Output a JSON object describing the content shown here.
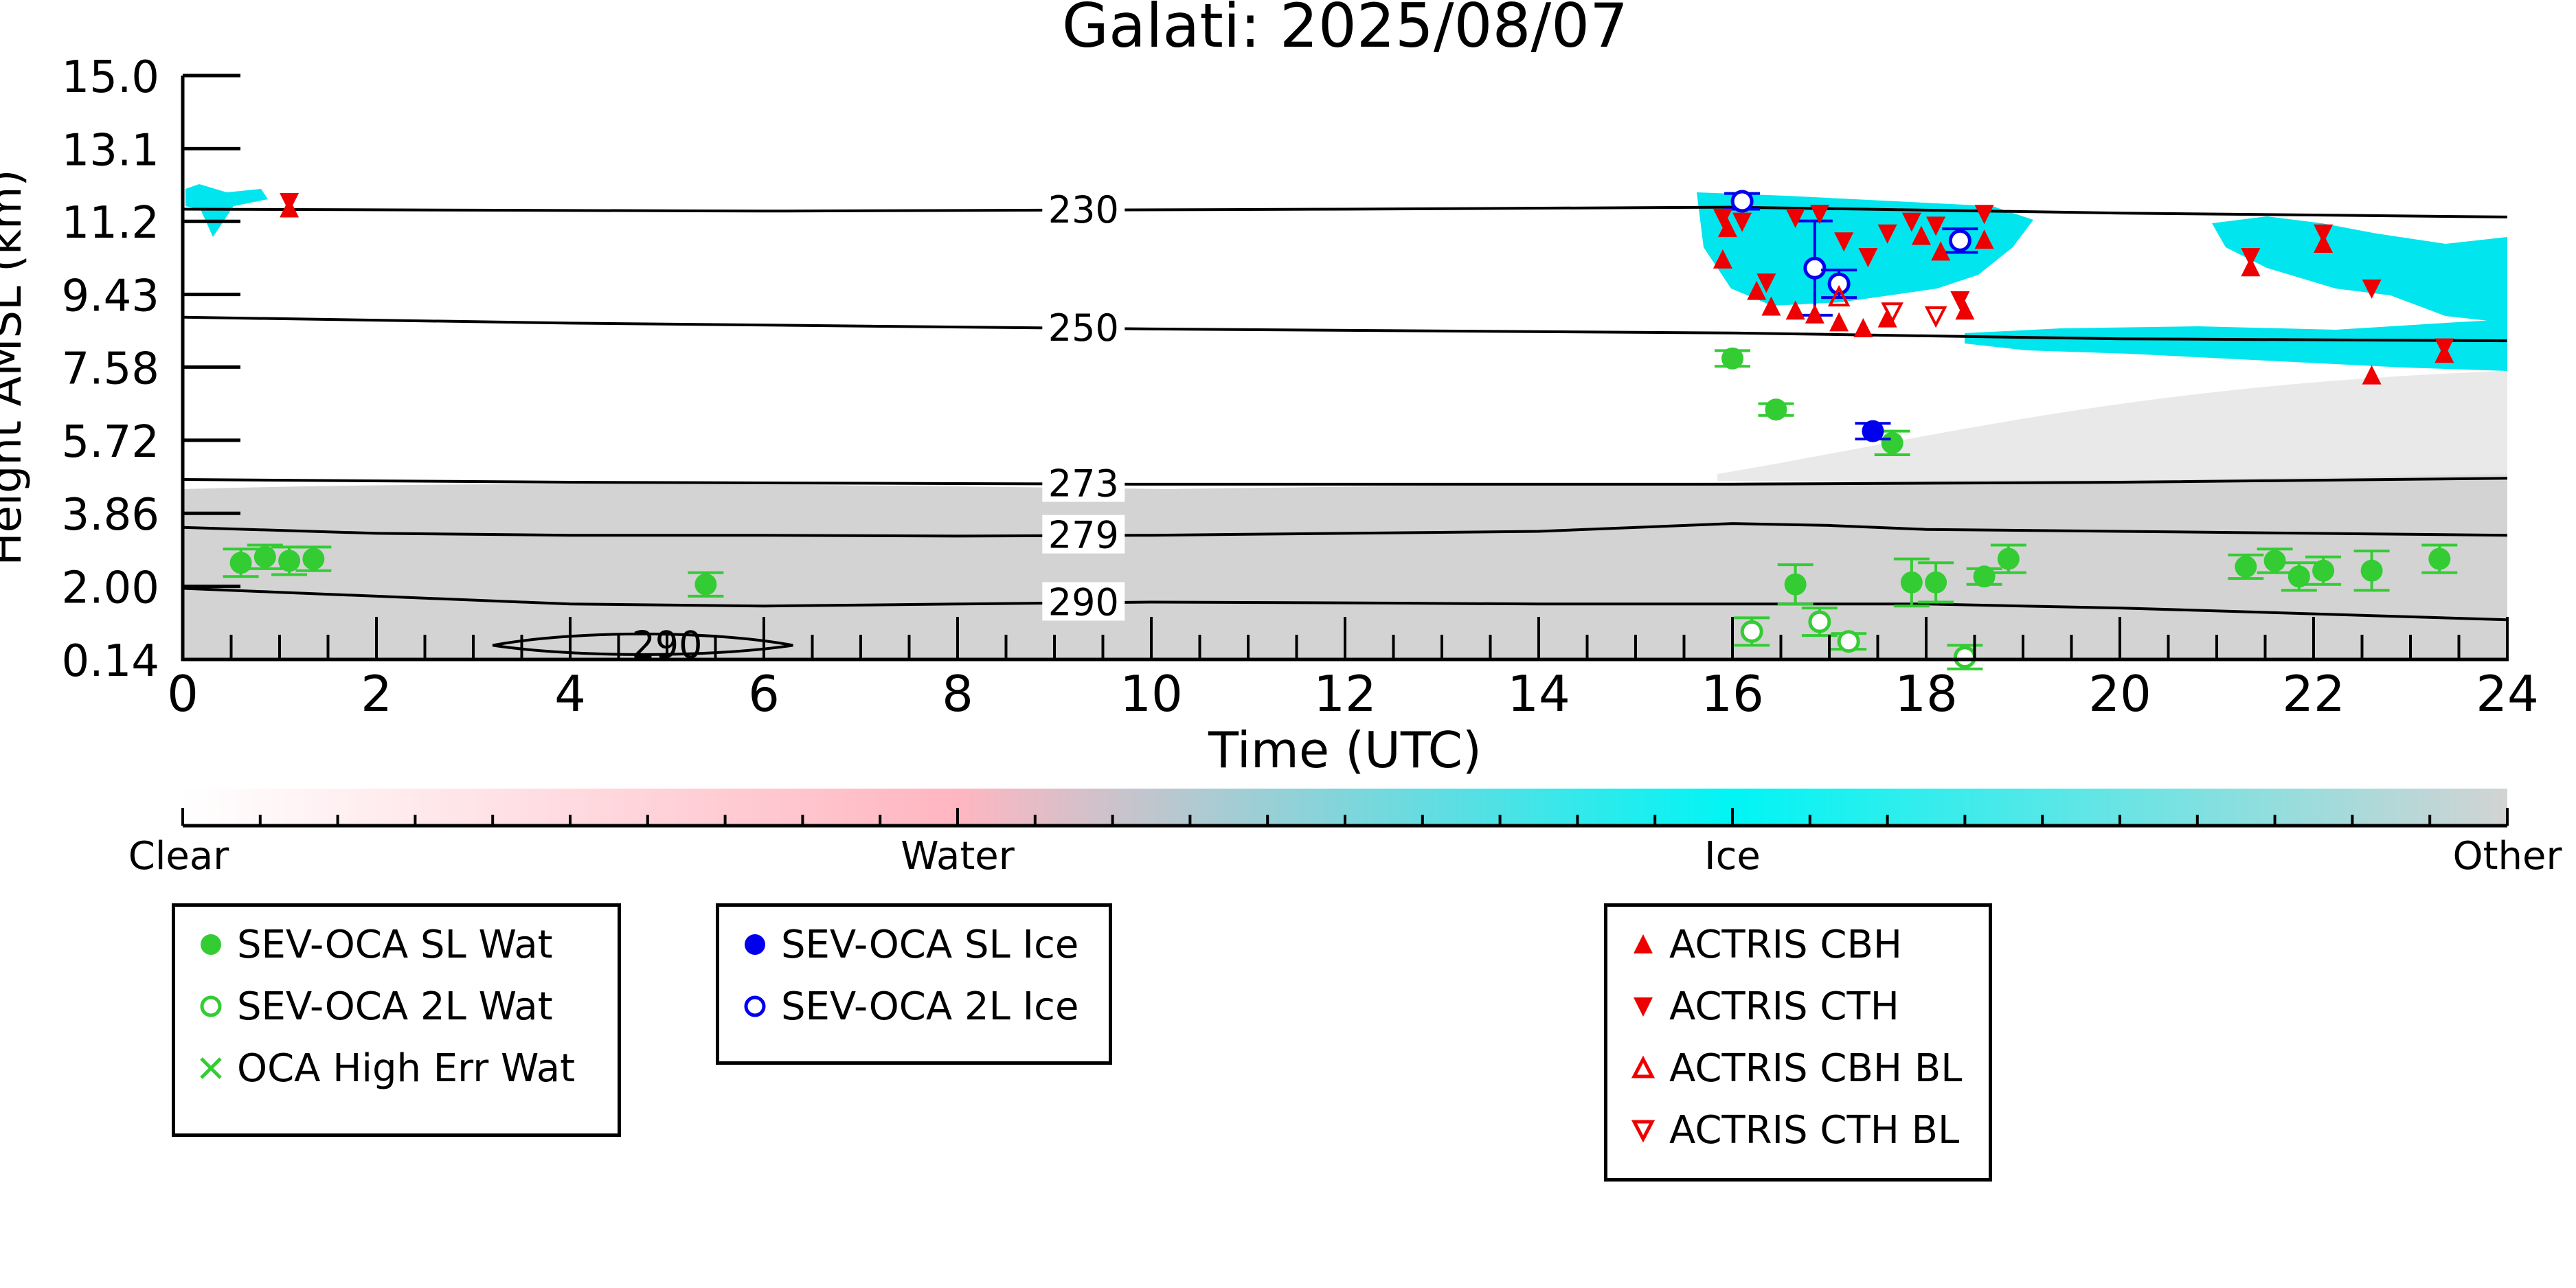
{
  "title": "Galati: 2025/08/07",
  "chart_data": {
    "type": "scatter",
    "title": "Galati: 2025/08/07",
    "xlabel": "Time (UTC)",
    "ylabel": "Height AMSL (km)",
    "xlim": [
      0,
      24
    ],
    "ylim": [
      0.14,
      15.0
    ],
    "xticks": [
      "0",
      "2",
      "4",
      "6",
      "8",
      "10",
      "12",
      "14",
      "16",
      "18",
      "20",
      "22",
      "24"
    ],
    "yticks": [
      "0.14",
      "2.00",
      "3.86",
      "5.72",
      "7.58",
      "9.43",
      "11.2",
      "13.1",
      "15.0"
    ],
    "ytick_values": [
      0.14,
      2.0,
      3.86,
      5.72,
      7.58,
      9.43,
      11.29,
      13.14,
      15.0
    ],
    "colorbar": {
      "labels": [
        "Clear",
        "Water",
        "Ice",
        "Other"
      ],
      "colors": [
        "#ffffff",
        "#ffb6c1",
        "#00ffff",
        "#d3d3d3"
      ]
    },
    "isotherms": [
      {
        "label": "230",
        "x": [
          0,
          6,
          12,
          16,
          20,
          24
        ],
        "y": [
          11.6,
          11.55,
          11.6,
          11.65,
          11.5,
          11.4
        ]
      },
      {
        "label": "250",
        "x": [
          0,
          4,
          10,
          16,
          20,
          24
        ],
        "y": [
          8.85,
          8.7,
          8.55,
          8.45,
          8.3,
          8.25
        ]
      },
      {
        "label": "273",
        "x": [
          0,
          4,
          10,
          16,
          20,
          24
        ],
        "y": [
          4.72,
          4.65,
          4.6,
          4.6,
          4.65,
          4.75
        ]
      },
      {
        "label": "279",
        "x": [
          0,
          2,
          4,
          6,
          8,
          10,
          12,
          14,
          16,
          17,
          18,
          20,
          22,
          24
        ],
        "y": [
          3.5,
          3.35,
          3.3,
          3.3,
          3.28,
          3.3,
          3.35,
          3.4,
          3.6,
          3.55,
          3.45,
          3.4,
          3.35,
          3.3
        ]
      },
      {
        "label": "290",
        "x": [
          0,
          1,
          2,
          4,
          6,
          8,
          10,
          12,
          14,
          16,
          18,
          20,
          22,
          24
        ],
        "y": [
          1.95,
          1.85,
          1.75,
          1.55,
          1.5,
          1.55,
          1.6,
          1.58,
          1.55,
          1.55,
          1.55,
          1.45,
          1.3,
          1.15
        ]
      }
    ],
    "series": [
      {
        "name": "SEV-OCA SL Wat",
        "color": "#33cc33",
        "marker": "filled-circle",
        "points": [
          [
            0.6,
            2.6,
            0.35
          ],
          [
            0.85,
            2.75,
            0.3
          ],
          [
            1.1,
            2.65,
            0.35
          ],
          [
            1.35,
            2.7,
            0.3
          ],
          [
            5.4,
            2.05,
            0.3
          ],
          [
            16.0,
            7.8,
            0.2
          ],
          [
            16.45,
            6.5,
            0.15
          ],
          [
            16.65,
            2.05,
            0.5
          ],
          [
            17.65,
            5.65,
            0.3
          ],
          [
            17.85,
            2.1,
            0.6
          ],
          [
            18.1,
            2.1,
            0.5
          ],
          [
            18.6,
            2.25,
            0.2
          ],
          [
            18.85,
            2.7,
            0.35
          ],
          [
            21.3,
            2.5,
            0.3
          ],
          [
            21.6,
            2.65,
            0.3
          ],
          [
            21.85,
            2.25,
            0.35
          ],
          [
            22.1,
            2.4,
            0.35
          ],
          [
            22.6,
            2.4,
            0.5
          ],
          [
            23.3,
            2.7,
            0.35
          ]
        ]
      },
      {
        "name": "SEV-OCA 2L Wat",
        "color": "#33cc33",
        "marker": "open-circle",
        "points": [
          [
            16.2,
            0.85,
            0.35
          ],
          [
            16.9,
            1.1,
            0.35
          ],
          [
            17.2,
            0.6,
            0.2
          ],
          [
            18.4,
            0.2,
            0.3
          ]
        ]
      },
      {
        "name": "OCA High Err Wat",
        "color": "#33cc33",
        "marker": "x",
        "points": []
      },
      {
        "name": "SEV-OCA SL Ice",
        "color": "#0000ee",
        "marker": "filled-circle",
        "points": [
          [
            17.45,
            5.95,
            0.2
          ]
        ]
      },
      {
        "name": "SEV-OCA 2L Ice",
        "color": "#0000ee",
        "marker": "open-circle",
        "points": [
          [
            16.1,
            11.8,
            0.2
          ],
          [
            16.85,
            10.1,
            1.2
          ],
          [
            17.1,
            9.7,
            0.35
          ],
          [
            18.35,
            10.8,
            0.3
          ]
        ]
      },
      {
        "name": "ACTRIS CBH",
        "color": "#ee0000",
        "marker": "triangle-up",
        "points": [
          [
            1.1,
            11.6
          ],
          [
            15.95,
            11.1
          ],
          [
            15.9,
            10.3
          ],
          [
            16.25,
            9.5
          ],
          [
            16.4,
            9.1
          ],
          [
            16.65,
            9.0
          ],
          [
            16.85,
            8.9
          ],
          [
            17.1,
            8.7
          ],
          [
            17.35,
            8.55
          ],
          [
            17.6,
            8.8
          ],
          [
            17.95,
            10.9
          ],
          [
            18.15,
            10.5
          ],
          [
            18.4,
            9.0
          ],
          [
            18.6,
            10.8
          ],
          [
            21.35,
            10.1
          ],
          [
            22.1,
            10.7
          ],
          [
            22.6,
            7.35
          ],
          [
            23.35,
            7.9
          ]
        ]
      },
      {
        "name": "ACTRIS CTH",
        "color": "#ee0000",
        "marker": "triangle-down",
        "points": [
          [
            1.1,
            11.8
          ],
          [
            15.9,
            11.4
          ],
          [
            16.1,
            11.3
          ],
          [
            16.35,
            9.75
          ],
          [
            16.65,
            11.4
          ],
          [
            16.9,
            11.5
          ],
          [
            17.15,
            10.8
          ],
          [
            17.4,
            10.4
          ],
          [
            17.6,
            11.0
          ],
          [
            17.85,
            11.3
          ],
          [
            18.1,
            11.2
          ],
          [
            18.35,
            9.3
          ],
          [
            18.6,
            11.5
          ],
          [
            21.35,
            10.4
          ],
          [
            22.1,
            11.0
          ],
          [
            22.6,
            9.6
          ],
          [
            23.35,
            8.1
          ]
        ]
      },
      {
        "name": "ACTRIS CBH BL",
        "color": "#ee0000",
        "marker": "open-triangle-up",
        "points": [
          [
            17.1,
            9.35
          ]
        ]
      },
      {
        "name": "ACTRIS CTH BL",
        "color": "#ee0000",
        "marker": "open-triangle-down",
        "points": [
          [
            17.65,
            9.0
          ],
          [
            18.1,
            8.9
          ]
        ]
      }
    ]
  },
  "legend": {
    "water": [
      "SEV-OCA SL Wat",
      "SEV-OCA 2L Wat",
      "OCA High Err Wat"
    ],
    "ice": [
      "SEV-OCA SL Ice",
      "SEV-OCA 2L Ice"
    ],
    "actris": [
      "ACTRIS CBH",
      "ACTRIS CTH",
      "ACTRIS CBH BL",
      "ACTRIS CTH BL"
    ]
  },
  "colors": {
    "water": "#33cc33",
    "ice": "#0000ee",
    "actris": "#ee0000",
    "cloud_ice": "#00e5ee",
    "other": "#d3d3d3"
  }
}
